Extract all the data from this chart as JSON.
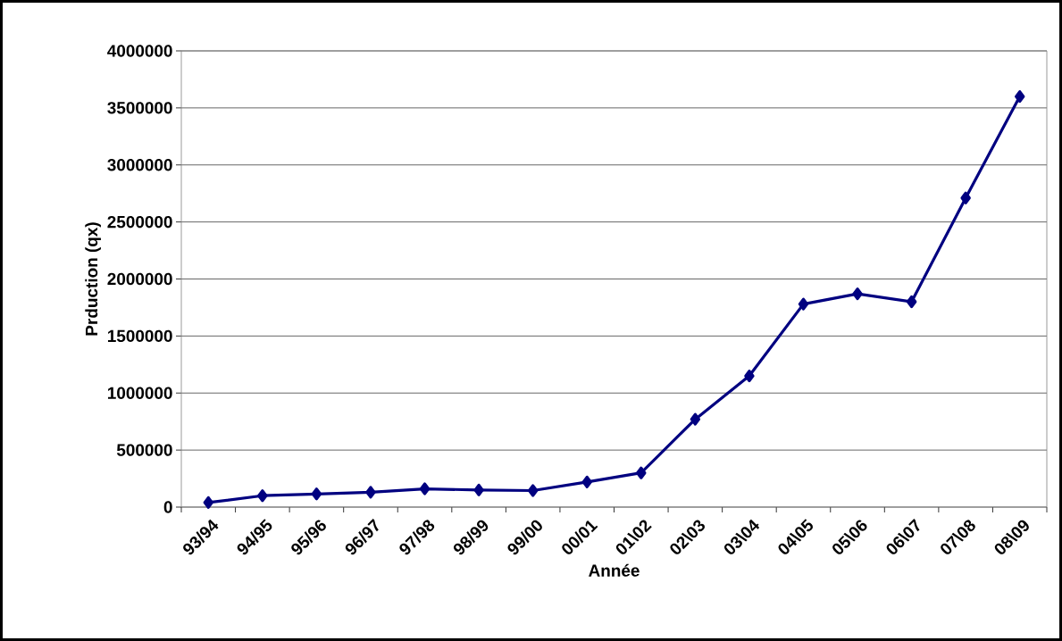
{
  "chart_data": {
    "type": "line",
    "xlabel": "Année",
    "ylabel": "Prduction (qx)",
    "categories": [
      "93/94",
      "94/95",
      "95/96",
      "96/97",
      "97/98",
      "98/99",
      "99/00",
      "00/01",
      "01\\02",
      "02\\03",
      "03\\04",
      "04\\05",
      "05\\06",
      "06\\07",
      "07\\08",
      "08\\09"
    ],
    "series": [
      {
        "color": "#000080",
        "values": [
          40000,
          100000,
          115000,
          130000,
          160000,
          150000,
          145000,
          220000,
          300000,
          770000,
          1150000,
          1780000,
          1870000,
          1800000,
          2710000,
          3600000
        ]
      }
    ],
    "ylim": [
      0,
      4000000
    ],
    "yticks": [
      0,
      500000,
      1000000,
      1500000,
      2000000,
      2500000,
      3000000,
      3500000,
      4000000
    ],
    "grid": "y",
    "marker": "diamond",
    "line_style": "solid"
  }
}
